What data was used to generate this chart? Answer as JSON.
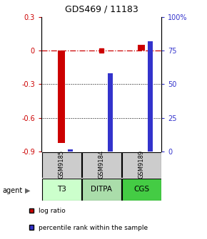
{
  "title": "GDS469 / 11183",
  "samples": [
    "GSM9185",
    "GSM9184",
    "GSM9189"
  ],
  "agents": [
    "T3",
    "DITPA",
    "CGS"
  ],
  "log_ratios": [
    -0.82,
    0.0,
    0.05
  ],
  "percentile_ranks": [
    2.0,
    58.0,
    82.0
  ],
  "ylim_left": [
    -0.9,
    0.3
  ],
  "ylim_right": [
    0,
    100
  ],
  "yticks_left": [
    0.3,
    0.0,
    -0.3,
    -0.6,
    -0.9
  ],
  "yticks_right": [
    100,
    75,
    50,
    25,
    0
  ],
  "ytick_labels_left": [
    "0.3",
    "0",
    "-0.3",
    "-0.6",
    "-0.9"
  ],
  "ytick_labels_right": [
    "100%",
    "75",
    "50",
    "25",
    "0"
  ],
  "red_color": "#cc0000",
  "blue_color": "#3333cc",
  "agent_colors": [
    "#ccffcc",
    "#aaddaa",
    "#44cc44"
  ],
  "sample_bg_color": "#cccccc",
  "legend_red_label": "log ratio",
  "legend_blue_label": "percentile rank within the sample"
}
